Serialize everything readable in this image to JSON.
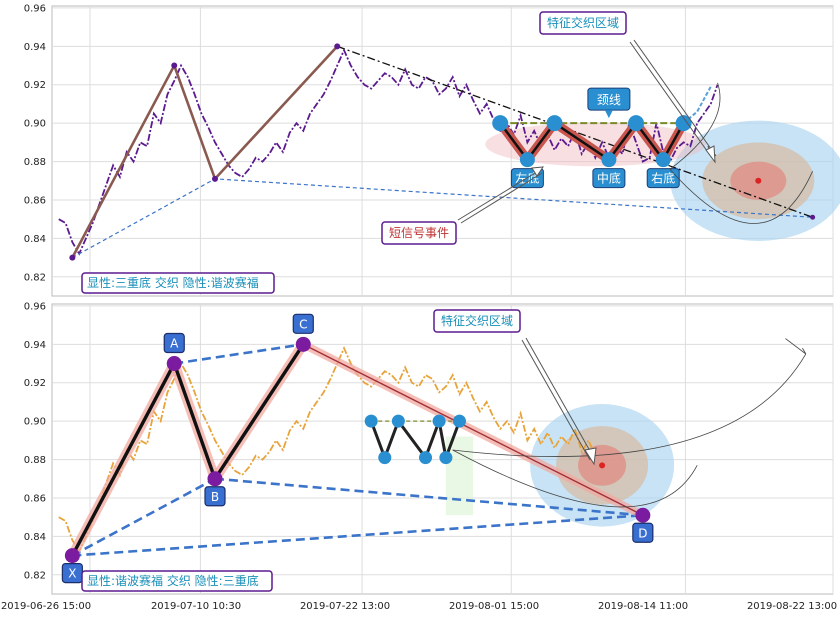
{
  "chart_data": [
    {
      "type": "line",
      "ylim": [
        0.81,
        0.961
      ],
      "yticks": [
        "0.96",
        "0.94",
        "0.92",
        "0.90",
        "0.88",
        "0.86",
        "0.84",
        "0.82"
      ],
      "ytick_values": [
        0.96,
        0.94,
        0.92,
        0.9,
        0.88,
        0.86,
        0.84,
        0.82
      ],
      "grid": true,
      "price_series": {
        "color": "#5b1a8f",
        "values": [
          0.85,
          0.848,
          0.838,
          0.832,
          0.84,
          0.848,
          0.858,
          0.868,
          0.878,
          0.872,
          0.885,
          0.88,
          0.89,
          0.888,
          0.905,
          0.9,
          0.915,
          0.922,
          0.93,
          0.924,
          0.915,
          0.905,
          0.898,
          0.89,
          0.884,
          0.878,
          0.874,
          0.872,
          0.876,
          0.882,
          0.88,
          0.884,
          0.89,
          0.885,
          0.895,
          0.9,
          0.896,
          0.905,
          0.91,
          0.915,
          0.922,
          0.93,
          0.938,
          0.93,
          0.924,
          0.92,
          0.918,
          0.922,
          0.926,
          0.924,
          0.92,
          0.928,
          0.92,
          0.918,
          0.924,
          0.922,
          0.915,
          0.918,
          0.924,
          0.914,
          0.92,
          0.912,
          0.905,
          0.91,
          0.902,
          0.896,
          0.9,
          0.894,
          0.904,
          0.89,
          0.896,
          0.888,
          0.894,
          0.886,
          0.892,
          0.888,
          0.896,
          0.884,
          0.89,
          0.882,
          0.89,
          0.882,
          0.888,
          0.884,
          0.9,
          0.89,
          0.88,
          0.882,
          0.9,
          0.885,
          0.88,
          0.887,
          0.89,
          0.888,
          0.9,
          0.905,
          0.91,
          0.92
        ]
      },
      "zigzag": [
        [
          3,
          0.83
        ],
        [
          18,
          0.93
        ],
        [
          24,
          0.871
        ],
        [
          42,
          0.94
        ]
      ],
      "upper_line": [
        [
          42,
          0.94
        ],
        [
          112,
          0.851
        ]
      ],
      "lower_line": [
        [
          3,
          0.83
        ],
        [
          24,
          0.871
        ],
        [
          112,
          0.851
        ]
      ],
      "pattern_points": [
        [
          66,
          0.9
        ],
        [
          70,
          0.881
        ],
        [
          74,
          0.9
        ],
        [
          82,
          0.881
        ],
        [
          86,
          0.9
        ],
        [
          90,
          0.881
        ],
        [
          93,
          0.9
        ]
      ],
      "pattern_labels": [
        {
          "text": "左底",
          "point": 1
        },
        {
          "text": "中底",
          "point": 3
        },
        {
          "text": "右底",
          "point": 5
        }
      ],
      "neckline": {
        "text": "颈线",
        "y": 0.9
      },
      "annotations": [
        "特征交织区域",
        "短信号事件"
      ],
      "footer": "显性:三重底 交织 隐性:谐波赛福"
    },
    {
      "type": "line",
      "ylim": [
        0.81,
        0.961
      ],
      "xlim": [
        "2019-06-26 15:00",
        "2019-08-22 13:00"
      ],
      "xticks": [
        "2019-06-26 15:00",
        "2019-07-10 10:30",
        "2019-07-22 13:00",
        "2019-08-01 15:00",
        "2019-08-14 11:00",
        "2019-08-22 13:00"
      ],
      "yticks": [
        "0.96",
        "0.94",
        "0.92",
        "0.90",
        "0.88",
        "0.86",
        "0.84",
        "0.82"
      ],
      "ytick_values": [
        0.96,
        0.94,
        0.92,
        0.9,
        0.88,
        0.86,
        0.84,
        0.82
      ],
      "grid": true,
      "price_series": {
        "color": "#e8a33a",
        "values": [
          0.85,
          0.848,
          0.838,
          0.832,
          0.84,
          0.848,
          0.858,
          0.868,
          0.878,
          0.872,
          0.885,
          0.88,
          0.89,
          0.888,
          0.905,
          0.9,
          0.915,
          0.922,
          0.93,
          0.924,
          0.915,
          0.905,
          0.898,
          0.89,
          0.884,
          0.878,
          0.874,
          0.872,
          0.876,
          0.882,
          0.88,
          0.884,
          0.89,
          0.885,
          0.895,
          0.9,
          0.896,
          0.905,
          0.91,
          0.915,
          0.922,
          0.93,
          0.938,
          0.93,
          0.924,
          0.92,
          0.918,
          0.922,
          0.926,
          0.924,
          0.92,
          0.928,
          0.92,
          0.918,
          0.924,
          0.922,
          0.915,
          0.918,
          0.924,
          0.914,
          0.92,
          0.912,
          0.905,
          0.91,
          0.902,
          0.896,
          0.9,
          0.894,
          0.904,
          0.89,
          0.896,
          0.888,
          0.894,
          0.886,
          0.892,
          0.888,
          0.896,
          0.884,
          0.89,
          0.882
        ]
      },
      "xabcd": [
        {
          "label": "X",
          "x": 3,
          "y": 0.83
        },
        {
          "label": "A",
          "x": 18,
          "y": 0.93
        },
        {
          "label": "B",
          "x": 24,
          "y": 0.87
        },
        {
          "label": "C",
          "x": 37,
          "y": 0.94
        },
        {
          "label": "D",
          "x": 87,
          "y": 0.851
        }
      ],
      "pattern_points": [
        [
          47,
          0.9
        ],
        [
          49,
          0.881
        ],
        [
          51,
          0.9
        ],
        [
          55,
          0.881
        ],
        [
          57,
          0.9
        ],
        [
          58,
          0.881
        ],
        [
          60,
          0.9
        ]
      ],
      "annotations": [
        "特征交织区域"
      ],
      "footer": "显性:谐波赛福 交织 隐性:三重底"
    }
  ]
}
